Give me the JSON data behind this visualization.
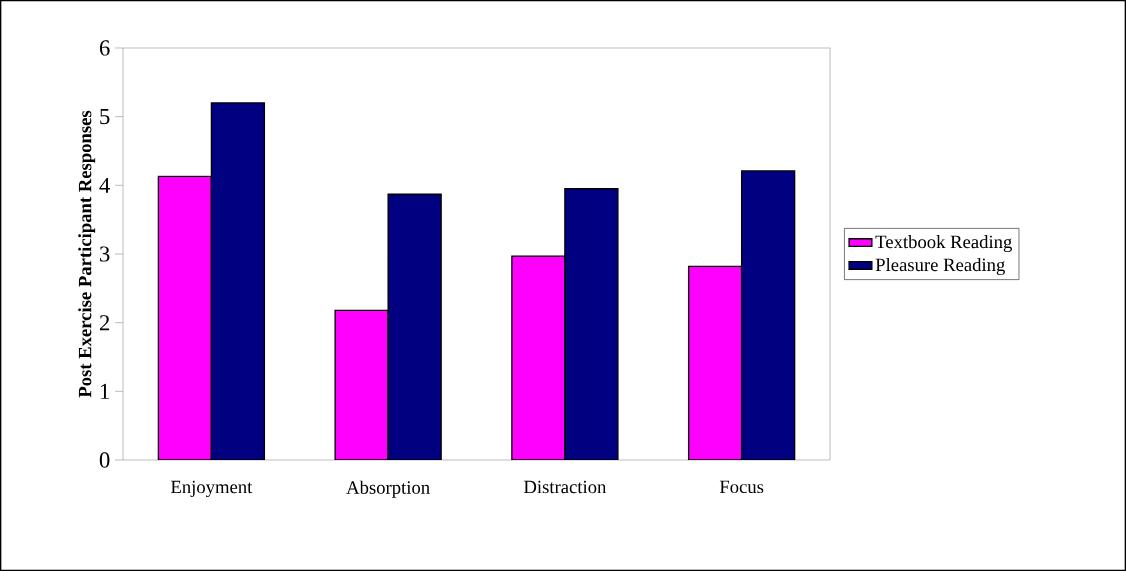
{
  "chart_data": {
    "type": "bar",
    "ylabel": "Post Exercise Participant Responses",
    "categories": [
      "Enjoyment",
      "Absorption",
      "Distraction",
      "Focus"
    ],
    "series": [
      {
        "name": "Textbook Reading",
        "color": "#ff00ff",
        "values": [
          4.13,
          2.18,
          2.97,
          2.82
        ]
      },
      {
        "name": "Pleasure Reading",
        "color": "#000080",
        "values": [
          5.2,
          3.87,
          3.95,
          4.21
        ]
      }
    ],
    "ylim": [
      0,
      6
    ],
    "yticks": [
      0,
      1,
      2,
      3,
      4,
      5,
      6
    ],
    "legend": "right",
    "grid": false
  }
}
